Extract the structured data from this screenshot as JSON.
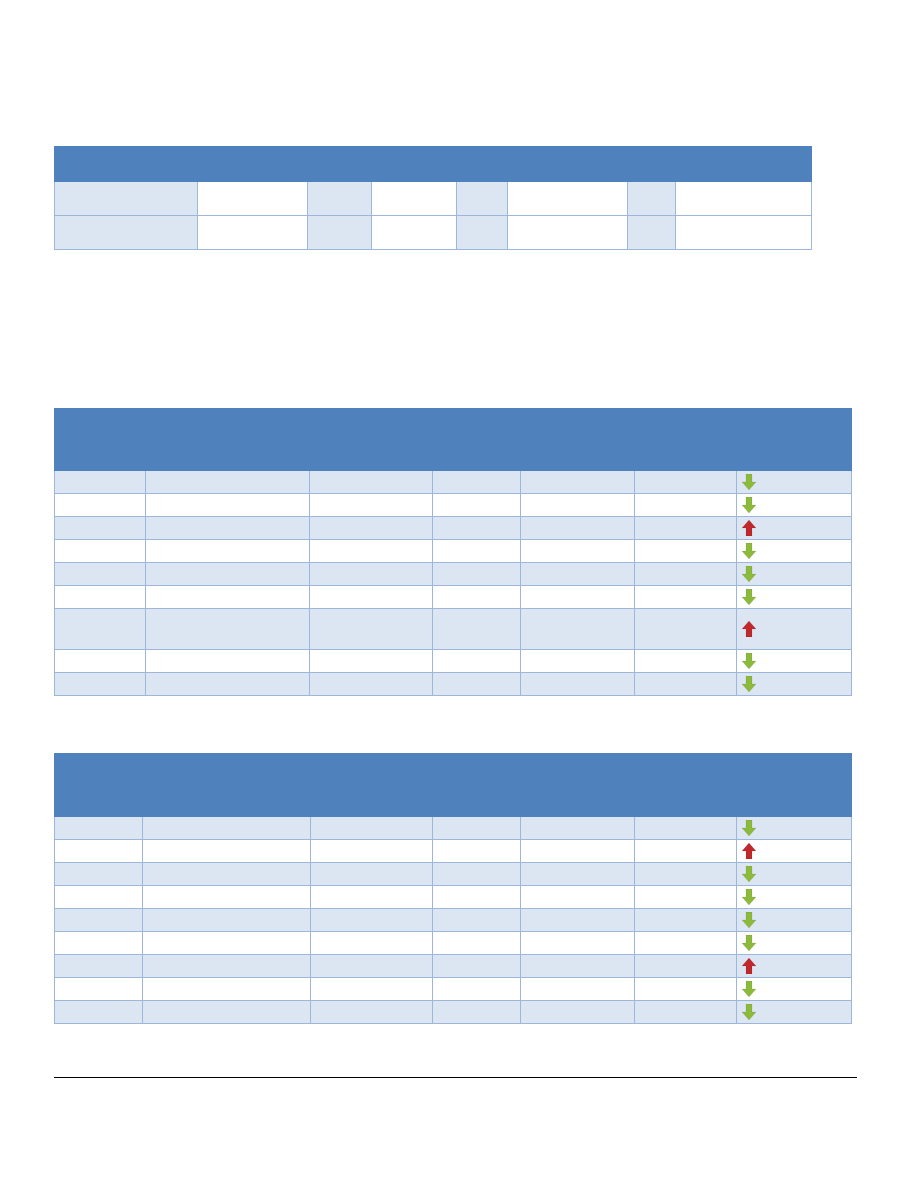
{
  "colors": {
    "header": "#4f81bd",
    "band": "#dce6f2",
    "border": "#9cb6dc",
    "arrow_down": "#8cbb3c",
    "arrow_up": "#c0282b"
  },
  "summary": {
    "header": "",
    "rows": [
      [
        "",
        "",
        "",
        "",
        "",
        "",
        "",
        ""
      ],
      [
        "",
        "",
        "",
        "",
        "",
        "",
        "",
        ""
      ]
    ]
  },
  "table1": {
    "headers": [
      "",
      "",
      "",
      "",
      "",
      "",
      ""
    ],
    "rows": [
      {
        "cells": [
          "",
          "",
          "",
          "",
          "",
          ""
        ],
        "trend": "down-arrow-icon"
      },
      {
        "cells": [
          "",
          "",
          "",
          "",
          "",
          ""
        ],
        "trend": "down-arrow-icon"
      },
      {
        "cells": [
          "",
          "",
          "",
          "",
          "",
          ""
        ],
        "trend": "up-arrow-icon"
      },
      {
        "cells": [
          "",
          "",
          "",
          "",
          "",
          ""
        ],
        "trend": "down-arrow-icon"
      },
      {
        "cells": [
          "",
          "",
          "",
          "",
          "",
          ""
        ],
        "trend": "down-arrow-icon"
      },
      {
        "cells": [
          "",
          "",
          "",
          "",
          "",
          ""
        ],
        "trend": "down-arrow-icon"
      },
      {
        "cells": [
          "",
          "",
          "",
          "",
          "",
          ""
        ],
        "trend": "up-arrow-icon"
      },
      {
        "cells": [
          "",
          "",
          "",
          "",
          "",
          ""
        ],
        "trend": "down-arrow-icon"
      },
      {
        "cells": [
          "",
          "",
          "",
          "",
          "",
          ""
        ],
        "trend": "down-arrow-icon"
      }
    ]
  },
  "table2": {
    "headers": [
      "",
      "",
      "",
      "",
      "",
      "",
      ""
    ],
    "rows": [
      {
        "cells": [
          "",
          "",
          "",
          "",
          "",
          ""
        ],
        "trend": "down-arrow-icon"
      },
      {
        "cells": [
          "",
          "",
          "",
          "",
          "",
          ""
        ],
        "trend": "up-arrow-icon"
      },
      {
        "cells": [
          "",
          "",
          "",
          "",
          "",
          ""
        ],
        "trend": "down-arrow-icon"
      },
      {
        "cells": [
          "",
          "",
          "",
          "",
          "",
          ""
        ],
        "trend": "down-arrow-icon"
      },
      {
        "cells": [
          "",
          "",
          "",
          "",
          "",
          ""
        ],
        "trend": "down-arrow-icon"
      },
      {
        "cells": [
          "",
          "",
          "",
          "",
          "",
          ""
        ],
        "trend": "down-arrow-icon"
      },
      {
        "cells": [
          "",
          "",
          "",
          "",
          "",
          ""
        ],
        "trend": "up-arrow-icon"
      },
      {
        "cells": [
          "",
          "",
          "",
          "",
          "",
          ""
        ],
        "trend": "down-arrow-icon"
      },
      {
        "cells": [
          "",
          "",
          "",
          "",
          "",
          ""
        ],
        "trend": "down-arrow-icon"
      }
    ]
  }
}
